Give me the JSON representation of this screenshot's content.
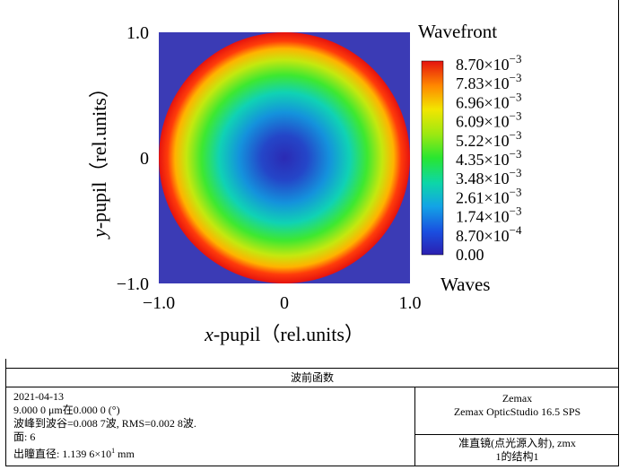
{
  "chart_data": {
    "type": "heatmap",
    "title": "Wavefront",
    "xlabel_italic": "x",
    "xlabel_rest": "-pupil（rel.units）",
    "ylabel_italic": "y",
    "ylabel_rest": "-pupil（rel.units）",
    "x_ticks": [
      "−1.0",
      "0",
      "1.0"
    ],
    "y_ticks": [
      "1.0",
      "0",
      "−1.0"
    ],
    "xlim": [
      -1.0,
      1.0
    ],
    "ylim": [
      -1.0,
      1.0
    ],
    "colorbar_title": "Wavefront",
    "colorbar_units": "Waves",
    "colorbar_range": [
      0.0,
      0.0087
    ],
    "colorbar_ticks": [
      {
        "mantissa": "8.70",
        "exp": "−3",
        "value": 0.0087
      },
      {
        "mantissa": "7.83",
        "exp": "−3",
        "value": 0.00783
      },
      {
        "mantissa": "6.96",
        "exp": "−3",
        "value": 0.00696
      },
      {
        "mantissa": "6.09",
        "exp": "−3",
        "value": 0.00609
      },
      {
        "mantissa": "5.22",
        "exp": "−3",
        "value": 0.00522
      },
      {
        "mantissa": "4.35",
        "exp": "−3",
        "value": 0.00435
      },
      {
        "mantissa": "3.48",
        "exp": "−3",
        "value": 0.00348
      },
      {
        "mantissa": "2.61",
        "exp": "−3",
        "value": 0.00261
      },
      {
        "mantissa": "1.74",
        "exp": "−3",
        "value": 0.00174
      },
      {
        "mantissa": "8.70",
        "exp": "−4",
        "value": 0.00087
      },
      {
        "mantissa": "0.00",
        "exp": "",
        "value": 0.0
      }
    ],
    "pupil_radius": 1.0,
    "peak_to_valley_waves": 0.0087,
    "rms_waves": 0.0028,
    "background_color": "#3b3bb5"
  },
  "panel": {
    "header": "波前函数",
    "date": "2021-04-13",
    "wavelength_line": "9.000 0 μm在0.000 0 (°)",
    "pv_rms_line": "波峰到波谷=0.008 7波, RMS=0.002 8波.",
    "surface_line": "面: 6",
    "exit_pupil_prefix": "出瞳直径: 1.139 6×10",
    "exit_pupil_exp": "1",
    "exit_pupil_suffix": " mm",
    "vendor": "Zemax",
    "product": "Zemax OpticStudio 16.5 SPS",
    "file_name": "准直镜(点光源入射), zmx",
    "config": "1的结构1"
  }
}
